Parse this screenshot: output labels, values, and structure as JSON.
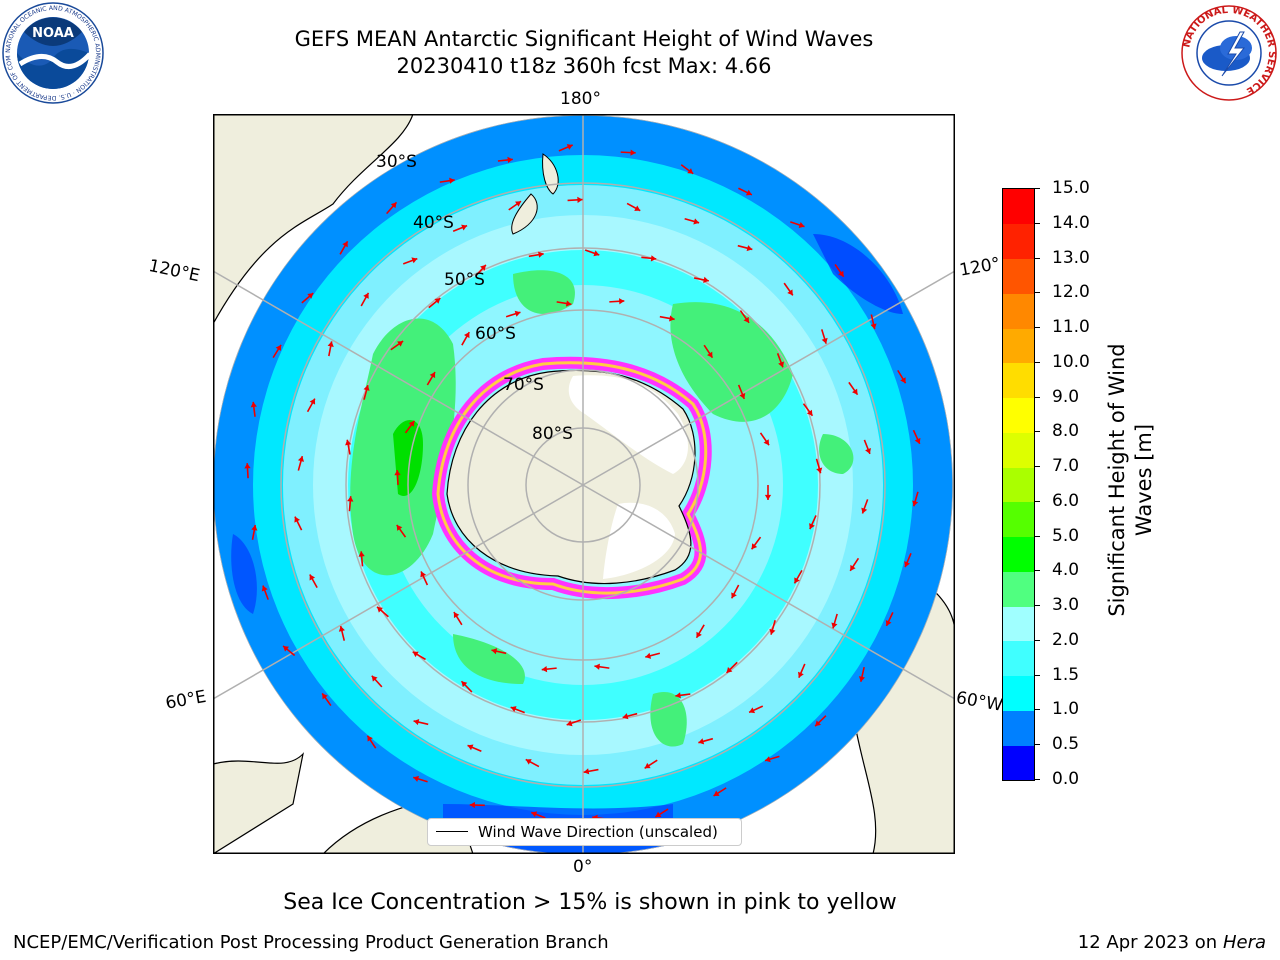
{
  "header": {
    "title_line1": "GEFS MEAN Antarctic Significant Height of Wind Waves",
    "title_line2": "20230410 t18z 360h fcst   Max: 4.66"
  },
  "logos": {
    "left": "NOAA",
    "left_ring_text": "NATIONAL OCEANIC AND ATMOSPHERIC ADMINISTRATION · U.S. DEPARTMENT OF COMMERCE ·",
    "right_ring_text": "NATIONAL WEATHER SERVICE"
  },
  "map": {
    "projection": "south-polar-stereographic",
    "lon_labels": {
      "top": "180°",
      "left_upper": "120°E",
      "right_upper": "120°",
      "left_lower": "60°E",
      "right_lower": "60°W",
      "bottom": "0°"
    },
    "lat_labels": [
      "30°S",
      "40°S",
      "50°S",
      "60°S",
      "70°S",
      "80°S"
    ],
    "colors": {
      "land": "#efeedd",
      "ice": "#ffffff",
      "grid": "#b0b0b0",
      "arrow": "#ee0000",
      "sea_ice_edge": [
        "#ff33ff",
        "#ff88cc",
        "#ffcc44"
      ]
    }
  },
  "colorbar": {
    "label": "Significant Height of Wind Waves [m]",
    "ticks": [
      "0.0",
      "0.5",
      "1.0",
      "1.5",
      "2.0",
      "3.0",
      "4.0",
      "5.0",
      "6.0",
      "7.0",
      "8.0",
      "9.0",
      "10.0",
      "11.0",
      "12.0",
      "13.0",
      "14.0",
      "15.0"
    ],
    "colors": [
      "#0000ff",
      "#0080ff",
      "#00ffff",
      "#40ffff",
      "#a0ffff",
      "#50ff80",
      "#00ff00",
      "#55ff00",
      "#aaff00",
      "#ddff00",
      "#ffff00",
      "#ffdd00",
      "#ffaa00",
      "#ff8800",
      "#ff5500",
      "#ff2200",
      "#ff0000"
    ]
  },
  "legend": {
    "label": "Wind Wave Direction (unscaled)"
  },
  "caption": "Sea Ice Concentration > 15% is shown in pink to yellow",
  "footer": {
    "left": "NCEP/EMC/Verification Post Processing Product Generation Branch",
    "right_prefix": "12 Apr 2023 on ",
    "right_machine": "Hera"
  }
}
